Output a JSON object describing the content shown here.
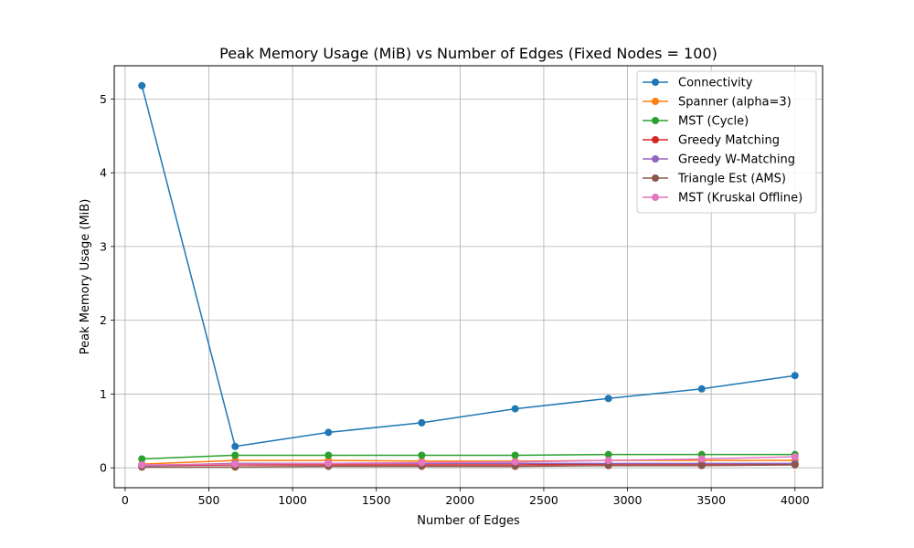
{
  "chart_data": {
    "type": "line",
    "title": "Peak Memory Usage (MiB) vs Number of Edges (Fixed Nodes = 100)",
    "xlabel": "Number of Edges",
    "ylabel": "Peak Memory Usage (MiB)",
    "xlim": [
      -65,
      4165
    ],
    "ylim": [
      -0.27,
      5.45
    ],
    "xticks": [
      0,
      500,
      1000,
      1500,
      2000,
      2500,
      3000,
      3500,
      4000
    ],
    "yticks": [
      0,
      1,
      2,
      3,
      4,
      5
    ],
    "grid": true,
    "legend_position": "top-right",
    "x": [
      100,
      657,
      1214,
      1771,
      2329,
      2886,
      3443,
      4000
    ],
    "series": [
      {
        "name": "Connectivity",
        "color": "#1f77b4",
        "values": [
          5.18,
          0.29,
          0.48,
          0.61,
          0.8,
          0.94,
          1.07,
          1.25
        ]
      },
      {
        "name": "Spanner (alpha=3)",
        "color": "#ff7f0e",
        "values": [
          0.05,
          0.1,
          0.1,
          0.09,
          0.09,
          0.1,
          0.1,
          0.1
        ]
      },
      {
        "name": "MST (Cycle)",
        "color": "#2ca02c",
        "values": [
          0.12,
          0.17,
          0.17,
          0.17,
          0.17,
          0.18,
          0.18,
          0.18
        ]
      },
      {
        "name": "Greedy Matching",
        "color": "#d62728",
        "values": [
          0.03,
          0.04,
          0.04,
          0.04,
          0.04,
          0.05,
          0.05,
          0.05
        ]
      },
      {
        "name": "Greedy W-Matching",
        "color": "#9467bd",
        "values": [
          0.03,
          0.06,
          0.06,
          0.06,
          0.06,
          0.06,
          0.06,
          0.06
        ]
      },
      {
        "name": "Triangle Est (AMS)",
        "color": "#8c564b",
        "values": [
          0.01,
          0.01,
          0.02,
          0.02,
          0.02,
          0.03,
          0.03,
          0.04
        ]
      },
      {
        "name": "MST (Kruskal Offline)",
        "color": "#e377c2",
        "values": [
          0.04,
          0.05,
          0.06,
          0.07,
          0.08,
          0.1,
          0.12,
          0.15
        ]
      }
    ]
  }
}
